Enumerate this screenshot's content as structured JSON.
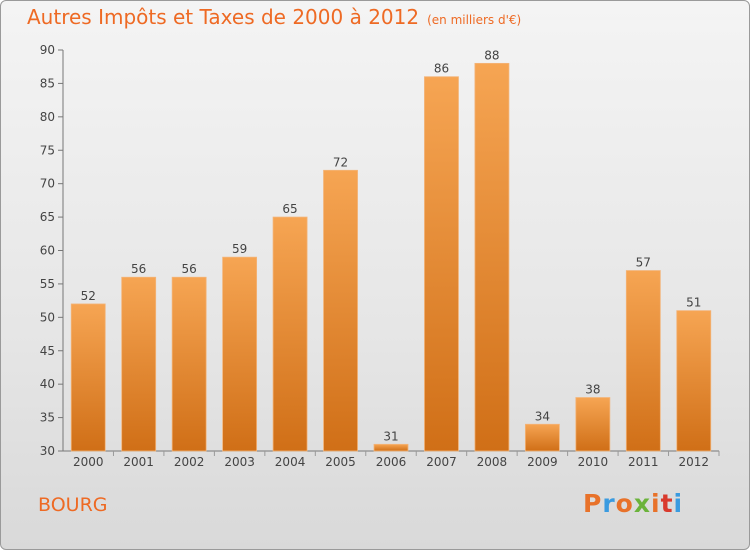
{
  "header": {
    "title": "Autres Impôts et Taxes de 2000 à 2012",
    "subtitle": "(en milliers d'€)"
  },
  "footer": {
    "commune": "BOURG",
    "brand": "Proxiti",
    "brand_letter_colors": [
      "#e8722a",
      "#3a9be0",
      "#e8722a",
      "#6bb33b",
      "#e8722a",
      "#d93a2d",
      "#3a9be0"
    ]
  },
  "colors": {
    "bar_light": "#f6a553",
    "bar_dark": "#d06f17",
    "accent": "#ee6a24",
    "text": "#444444"
  },
  "chart_data": {
    "type": "bar",
    "title": "Autres Impôts et Taxes de 2000 à 2012",
    "subtitle": "(en milliers d'€)",
    "categories": [
      "2000",
      "2001",
      "2002",
      "2003",
      "2004",
      "2005",
      "2006",
      "2007",
      "2008",
      "2009",
      "2010",
      "2011",
      "2012"
    ],
    "values": [
      52,
      56,
      56,
      59,
      65,
      72,
      31,
      86,
      88,
      34,
      38,
      57,
      51
    ],
    "ylim": [
      30,
      90
    ],
    "yticks": [
      30,
      35,
      40,
      45,
      50,
      55,
      60,
      65,
      70,
      75,
      80,
      85,
      90
    ],
    "grid": false,
    "data_labels": true
  }
}
